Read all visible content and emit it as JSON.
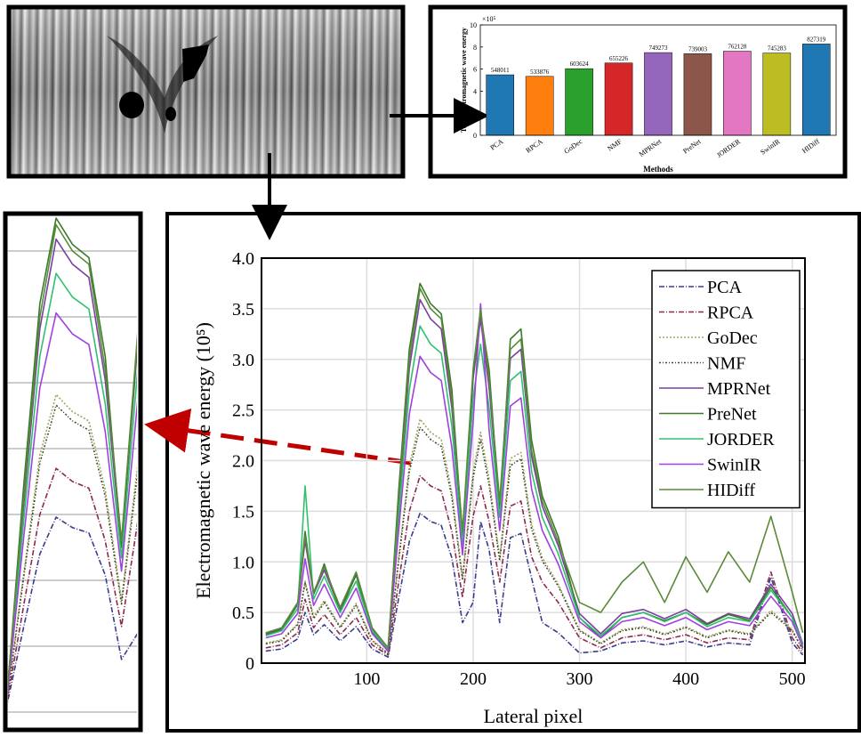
{
  "chart_data": [
    {
      "type": "bar",
      "ylabel": "Total electromagnetic wave energy",
      "xlabel": "Methods",
      "y_multiplier": "×10⁵",
      "categories": [
        "PCA",
        "RPCA",
        "GoDec",
        "NMF",
        "MPRNet",
        "PreNet",
        "JORDER",
        "SwinIR",
        "HIDiff"
      ],
      "values": [
        5.48011,
        5.33876,
        6.03624,
        6.55226,
        7.49273,
        7.39003,
        7.62128,
        7.45283,
        8.27319
      ],
      "value_labels": [
        "548011",
        "533876",
        "603624",
        "655226",
        "749273",
        "739003",
        "762128",
        "745283",
        "827319"
      ],
      "colors": [
        "#1f77b4",
        "#ff7f0e",
        "#2ca02c",
        "#d62728",
        "#9467bd",
        "#8c564b",
        "#e377c2",
        "#bcbd22",
        "#1f77b4"
      ],
      "ylim": [
        0,
        10
      ],
      "yticks": [
        0,
        2,
        4,
        6,
        8,
        10
      ],
      "grid": false
    },
    {
      "type": "line",
      "xlabel": "Lateral pixel",
      "ylabel": "Electromagnetic wave energy (10⁵)",
      "x": [
        5,
        20,
        35,
        42,
        50,
        60,
        75,
        90,
        105,
        120,
        130,
        140,
        150,
        160,
        170,
        180,
        190,
        200,
        207,
        215,
        225,
        235,
        245,
        255,
        265,
        280,
        300,
        320,
        340,
        360,
        380,
        400,
        420,
        440,
        460,
        480,
        500,
        510
      ],
      "xlim": [
        1,
        512
      ],
      "ylim": [
        0,
        4
      ],
      "xticks": [
        100,
        200,
        300,
        400,
        500
      ],
      "yticks": [
        0,
        0.5,
        {
          "value": 1,
          "label": "1.0"
        },
        1.5,
        {
          "value": 2,
          "label": "2.0"
        },
        2.5,
        {
          "value": 3,
          "label": "3.0"
        },
        3.5,
        {
          "value": 4,
          "label": "4.0"
        }
      ],
      "grid": true,
      "legend": "upper right",
      "series": [
        {
          "name": "PCA",
          "color": "#3b3b8f",
          "dash": "6 2 1 2",
          "values": [
            0.12,
            0.14,
            0.24,
            0.5,
            0.28,
            0.38,
            0.22,
            0.36,
            0.14,
            0.06,
            0.64,
            1.2,
            1.48,
            1.4,
            1.36,
            1.04,
            0.4,
            0.6,
            1.4,
            1.12,
            0.4,
            1.24,
            1.28,
            0.84,
            0.4,
            0.3,
            0.1,
            0.12,
            0.2,
            0.22,
            0.18,
            0.22,
            0.16,
            0.2,
            0.18,
            0.85,
            0.2,
            0.08
          ]
        },
        {
          "name": "RPCA",
          "color": "#8b2a4a",
          "dash": "6 2 1 2",
          "values": [
            0.15,
            0.18,
            0.3,
            0.63,
            0.35,
            0.48,
            0.28,
            0.45,
            0.18,
            0.08,
            0.8,
            1.5,
            1.85,
            1.75,
            1.7,
            1.3,
            0.65,
            1.45,
            1.75,
            1.4,
            0.8,
            1.55,
            1.6,
            1.05,
            0.8,
            0.6,
            0.25,
            0.15,
            0.25,
            0.28,
            0.23,
            0.28,
            0.2,
            0.25,
            0.23,
            0.9,
            0.25,
            0.1
          ]
        },
        {
          "name": "GoDec",
          "color": "#a8a060",
          "dash": "2 2",
          "values": [
            0.2,
            0.23,
            0.39,
            0.81,
            0.46,
            0.62,
            0.36,
            0.59,
            0.23,
            0.1,
            1.04,
            1.95,
            2.41,
            2.28,
            2.21,
            1.69,
            0.85,
            1.89,
            2.28,
            1.82,
            1.04,
            2.02,
            2.08,
            1.37,
            1.04,
            0.78,
            0.33,
            0.2,
            0.33,
            0.36,
            0.29,
            0.36,
            0.26,
            0.33,
            0.29,
            0.52,
            0.33,
            0.13
          ]
        },
        {
          "name": "NMF",
          "color": "#3a4a2a",
          "dash": "2 2 1 2",
          "values": [
            0.19,
            0.22,
            0.38,
            0.79,
            0.44,
            0.6,
            0.35,
            0.57,
            0.22,
            0.09,
            1.01,
            1.89,
            2.33,
            2.21,
            2.14,
            1.64,
            0.82,
            1.83,
            2.21,
            1.76,
            1.01,
            1.95,
            2.02,
            1.32,
            1.01,
            0.76,
            0.32,
            0.19,
            0.32,
            0.35,
            0.28,
            0.35,
            0.25,
            0.32,
            0.28,
            0.5,
            0.32,
            0.13
          ]
        },
        {
          "name": "MPRNet",
          "color": "#7a3fa0",
          "dash": "none",
          "values": [
            0.29,
            0.34,
            0.58,
            1.21,
            0.68,
            0.92,
            0.53,
            0.87,
            0.34,
            0.15,
            1.55,
            2.91,
            3.59,
            3.4,
            3.3,
            2.52,
            1.26,
            2.81,
            3.4,
            2.72,
            1.55,
            3.01,
            3.1,
            2.04,
            1.55,
            1.16,
            0.49,
            0.29,
            0.49,
            0.53,
            0.44,
            0.53,
            0.39,
            0.49,
            0.44,
            0.78,
            0.49,
            0.19
          ]
        },
        {
          "name": "PreNet",
          "color": "#3a7a2a",
          "dash": "none",
          "values": [
            0.28,
            0.33,
            0.58,
            1.3,
            0.68,
            0.98,
            0.5,
            0.88,
            0.3,
            0.12,
            1.7,
            3.1,
            3.75,
            3.55,
            3.45,
            2.7,
            1.25,
            2.85,
            3.45,
            2.9,
            1.5,
            3.2,
            3.3,
            2.2,
            1.65,
            1.25,
            0.45,
            0.25,
            0.45,
            0.5,
            0.42,
            0.5,
            0.38,
            0.48,
            0.42,
            0.75,
            0.45,
            0.15
          ]
        },
        {
          "name": "JORDER",
          "color": "#30c070",
          "dash": "none",
          "values": [
            0.27,
            0.32,
            0.54,
            1.75,
            0.63,
            0.86,
            0.5,
            0.81,
            0.32,
            0.14,
            1.44,
            2.7,
            3.33,
            3.15,
            3.06,
            2.34,
            1.17,
            2.61,
            3.15,
            2.52,
            1.44,
            2.79,
            2.88,
            1.89,
            1.44,
            1.08,
            0.45,
            0.27,
            0.45,
            0.5,
            0.41,
            0.5,
            0.36,
            0.45,
            0.41,
            0.72,
            0.45,
            0.18
          ]
        },
        {
          "name": "SwinIR",
          "color": "#a040e0",
          "dash": "none",
          "values": [
            0.25,
            0.29,
            0.49,
            1.03,
            0.57,
            0.78,
            0.45,
            0.74,
            0.29,
            0.12,
            1.31,
            2.46,
            3.03,
            2.87,
            2.79,
            2.13,
            1.07,
            2.38,
            3.55,
            2.3,
            1.31,
            2.54,
            2.62,
            1.72,
            1.31,
            0.98,
            0.41,
            0.25,
            0.41,
            0.45,
            0.37,
            0.45,
            0.33,
            0.41,
            0.37,
            0.66,
            0.41,
            0.16
          ]
        },
        {
          "name": "HIDiff",
          "color": "#5a8a3a",
          "dash": "none",
          "values": [
            0.3,
            0.35,
            0.6,
            1.25,
            0.7,
            0.95,
            0.55,
            0.9,
            0.35,
            0.15,
            1.6,
            3.0,
            3.7,
            3.5,
            3.4,
            2.6,
            1.3,
            2.9,
            3.5,
            2.8,
            1.6,
            3.1,
            3.2,
            2.1,
            1.6,
            1.2,
            0.6,
            0.5,
            0.8,
            1.0,
            0.6,
            1.05,
            0.7,
            1.1,
            0.8,
            1.45,
            0.7,
            0.3
          ]
        }
      ]
    }
  ]
}
